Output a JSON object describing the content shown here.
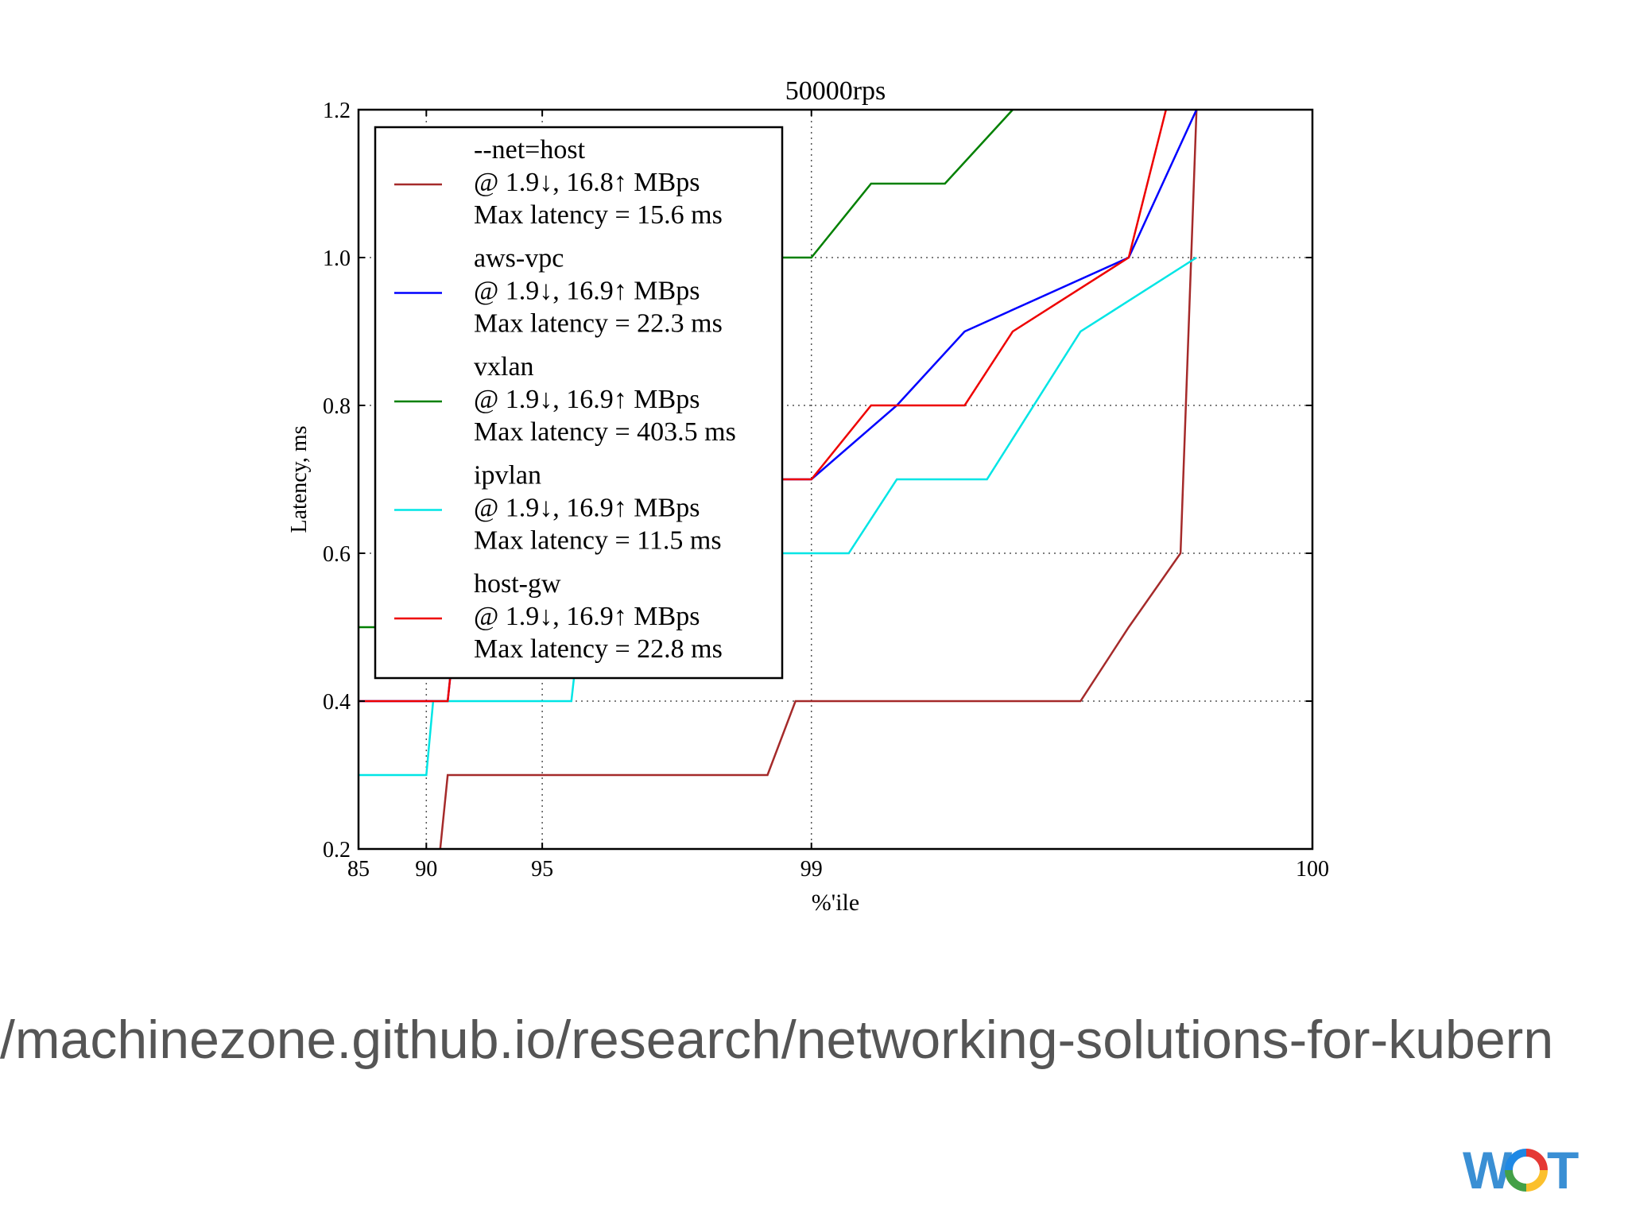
{
  "chart_data": {
    "type": "line",
    "title": "50000rps",
    "xlabel": "%'ile",
    "ylabel": "Latency, ms",
    "xlim": [
      85,
      100
    ],
    "ylim": [
      0.2,
      1.2
    ],
    "xscale": "inverse-percentile",
    "x_ticks": [
      85,
      90,
      95,
      99,
      100
    ],
    "x_tick_labels": [
      "85",
      "90",
      "95",
      "99",
      "100"
    ],
    "y_ticks": [
      0.2,
      0.4,
      0.6,
      0.8,
      1.0,
      1.2
    ],
    "y_tick_labels": [
      "0.2",
      "0.4",
      "0.6",
      "0.8",
      "1.0",
      "1.2"
    ],
    "grid": true,
    "legend_position": "upper-left",
    "series": [
      {
        "name": "--net=host",
        "legend_lines": [
          "--net=host",
          "@ 1.9↓, 16.8↑ MBps",
          "Max latency = 15.6 ms"
        ],
        "color": "#a52a2a",
        "points": [
          [
            90.8,
            0.2
          ],
          [
            91.2,
            0.3
          ],
          [
            98.7,
            0.3
          ],
          [
            98.9,
            0.4
          ],
          [
            99.8,
            0.4
          ],
          [
            99.85,
            0.5
          ],
          [
            99.89,
            0.6
          ],
          [
            99.9,
            1.2
          ]
        ]
      },
      {
        "name": "aws-vpc",
        "legend_lines": [
          "aws-vpc",
          "@ 1.9↓, 16.9↑ MBps",
          "Max latency = 22.3 ms"
        ],
        "color": "#0000ff",
        "points": [
          [
            85,
            0.4
          ],
          [
            91.2,
            0.4
          ],
          [
            91.6,
            0.5
          ],
          [
            95.8,
            0.5
          ],
          [
            96.0,
            0.6
          ],
          [
            98.5,
            0.6
          ],
          [
            98.8,
            0.7
          ],
          [
            99.0,
            0.7
          ],
          [
            99.4,
            0.8
          ],
          [
            99.6,
            0.9
          ],
          [
            99.85,
            1.0
          ],
          [
            99.9,
            1.2
          ]
        ]
      },
      {
        "name": "vxlan",
        "legend_lines": [
          "vxlan",
          "@ 1.9↓, 16.9↑ MBps",
          "Max latency = 403.5 ms"
        ],
        "color": "#008000",
        "points": [
          [
            85,
            0.5
          ],
          [
            89.5,
            0.5
          ],
          [
            89.8,
            0.6
          ],
          [
            91.6,
            0.6
          ],
          [
            92.0,
            0.7
          ],
          [
            95.0,
            0.7
          ],
          [
            95.2,
            0.8
          ],
          [
            96.8,
            0.8
          ],
          [
            97.0,
            0.9
          ],
          [
            98.2,
            0.9
          ],
          [
            98.6,
            1.0
          ],
          [
            99.0,
            1.0
          ],
          [
            99.3,
            1.1
          ],
          [
            99.55,
            1.1
          ],
          [
            99.7,
            1.2
          ]
        ]
      },
      {
        "name": "ipvlan",
        "legend_lines": [
          "ipvlan",
          "@ 1.9↓, 16.9↑ MBps",
          "Max latency = 11.5 ms"
        ],
        "color": "#00e5e5",
        "points": [
          [
            85,
            0.3
          ],
          [
            90.0,
            0.3
          ],
          [
            90.4,
            0.4
          ],
          [
            95.8,
            0.4
          ],
          [
            96.0,
            0.5
          ],
          [
            97.9,
            0.5
          ],
          [
            98.2,
            0.6
          ],
          [
            99.2,
            0.6
          ],
          [
            99.4,
            0.7
          ],
          [
            99.65,
            0.7
          ],
          [
            99.8,
            0.9
          ],
          [
            99.9,
            1.0
          ]
        ]
      },
      {
        "name": "host-gw",
        "legend_lines": [
          "host-gw",
          "@ 1.9↓, 16.9↑ MBps",
          "Max latency = 22.8 ms"
        ],
        "color": "#ee0000",
        "points": [
          [
            85,
            0.4
          ],
          [
            91.2,
            0.4
          ],
          [
            91.6,
            0.5
          ],
          [
            95.6,
            0.5
          ],
          [
            95.8,
            0.6
          ],
          [
            98.4,
            0.6
          ],
          [
            98.6,
            0.7
          ],
          [
            99.0,
            0.7
          ],
          [
            99.3,
            0.8
          ],
          [
            99.6,
            0.8
          ],
          [
            99.7,
            0.9
          ],
          [
            99.85,
            1.0
          ],
          [
            99.88,
            1.2
          ]
        ]
      }
    ]
  },
  "footer": {
    "url": "/machinezone.github.io/research/networking-solutions-for-kubern",
    "logo_text": "WOT"
  },
  "colors": {
    "url_text": "#555555",
    "logo_blue": "#3a8fd4",
    "logo_o_segments": [
      "#e53935",
      "#fbc02d",
      "#43a047",
      "#1e88e5"
    ]
  }
}
